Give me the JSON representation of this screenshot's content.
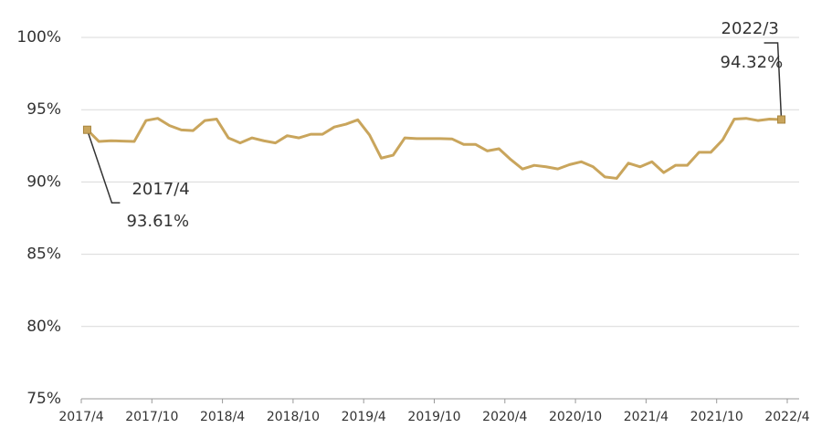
{
  "chart_data": {
    "type": "line",
    "series": [
      {
        "name": null,
        "color": "#c9a55c",
        "values": [
          93.61,
          92.8,
          92.85,
          92.83,
          92.8,
          94.25,
          94.4,
          93.9,
          93.6,
          93.55,
          94.25,
          94.35,
          93.05,
          92.7,
          93.05,
          92.85,
          92.7,
          93.2,
          93.05,
          93.3,
          93.3,
          93.8,
          94.0,
          94.3,
          93.25,
          91.65,
          91.85,
          93.05,
          93.0,
          93.0,
          93.0,
          92.98,
          92.6,
          92.6,
          92.15,
          92.3,
          91.55,
          90.9,
          91.15,
          91.05,
          90.9,
          91.2,
          91.4,
          91.05,
          90.35,
          90.25,
          91.3,
          91.05,
          91.4,
          90.65,
          91.15,
          91.15,
          92.05,
          92.05,
          92.9,
          94.35,
          94.4,
          94.25,
          94.35,
          94.32
        ],
        "value_labels": [
          "93.61%",
          null,
          null,
          null,
          null,
          null,
          null,
          null,
          null,
          null,
          null,
          null,
          null,
          null,
          null,
          null,
          null,
          null,
          null,
          null,
          null,
          null,
          null,
          null,
          null,
          null,
          null,
          null,
          null,
          null,
          null,
          null,
          null,
          null,
          null,
          null,
          null,
          null,
          null,
          null,
          null,
          null,
          null,
          null,
          null,
          null,
          null,
          null,
          null,
          null,
          null,
          null,
          null,
          null,
          null,
          null,
          null,
          null,
          null,
          "94.32%"
        ]
      }
    ],
    "xtick_labels": [
      "2017/4",
      "2017/10",
      "2018/4",
      "2018/10",
      "2019/4",
      "2019/10",
      "2020/4",
      "2020/10",
      "2021/4",
      "2021/10",
      "2022/4"
    ],
    "annotations": [
      "2017/4",
      "2022/3"
    ],
    "ylim": [
      75,
      100
    ],
    "yticks": [
      {
        "value": 75,
        "label": "75%"
      },
      {
        "value": 80,
        "label": "80%"
      },
      {
        "value": 85,
        "label": "85%"
      },
      {
        "value": 90,
        "label": "90%"
      },
      {
        "value": 95,
        "label": "95%"
      },
      {
        "value": 100,
        "label": "100%"
      }
    ],
    "grid": true
  }
}
